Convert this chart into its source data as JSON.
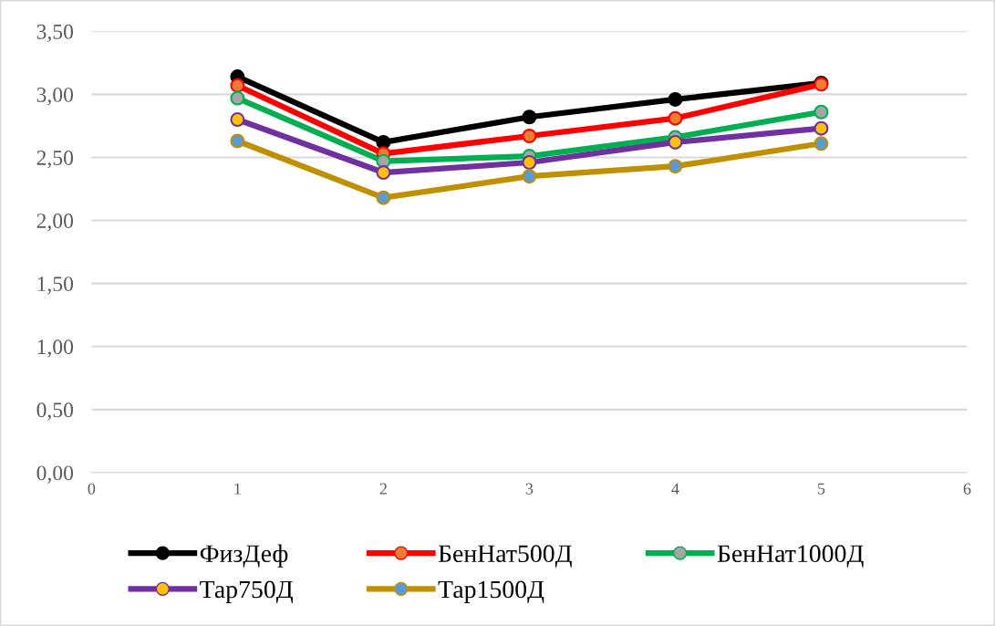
{
  "chart_data": {
    "type": "line",
    "x": [
      1,
      2,
      3,
      4,
      5
    ],
    "series": [
      {
        "name": "ФизДеф",
        "color": "#000000",
        "colors": [
          "#000000",
          "#000000",
          "#000000",
          "#000000",
          "#000000"
        ],
        "values": [
          3.14,
          2.62,
          2.82,
          2.96,
          3.09
        ]
      },
      {
        "name": "БенНат500Д",
        "color": "#ff0000",
        "colors": [
          "#ed7d31",
          "#ed7d31",
          "#ed7d31",
          "#ed7d31",
          "#ed7d31"
        ],
        "values": [
          3.07,
          2.53,
          2.67,
          2.81,
          3.08
        ]
      },
      {
        "name": "БенНат1000Д",
        "color": "#00b050",
        "colors": [
          "#a5a5a5",
          "#a5a5a5",
          "#a5a5a5",
          "#a5a5a5",
          "#a5a5a5"
        ],
        "values": [
          2.97,
          2.47,
          2.51,
          2.66,
          2.86
        ]
      },
      {
        "name": "Тар750Д",
        "color": "#7030a0",
        "colors": [
          "#ffc000",
          "#ffc000",
          "#ffc000",
          "#ffc000",
          "#ffc000"
        ],
        "values": [
          2.8,
          2.38,
          2.46,
          2.62,
          2.73
        ]
      },
      {
        "name": "Тар1500Д",
        "color": "#bf9000",
        "colors": [
          "#5b9bd5",
          "#5b9bd5",
          "#5b9bd5",
          "#5b9bd5",
          "#5b9bd5"
        ],
        "values": [
          2.63,
          2.18,
          2.35,
          2.43,
          2.61
        ]
      }
    ],
    "xlim": [
      0,
      6
    ],
    "xticks": [
      0,
      1,
      2,
      3,
      4,
      5,
      6
    ],
    "ylim": [
      0,
      3.5
    ],
    "yticks": [
      {
        "value": 0,
        "label": "0,00"
      },
      {
        "value": 0.5,
        "label": "0,50"
      },
      {
        "value": 1,
        "label": "1,00"
      },
      {
        "value": 1.5,
        "label": "1,50"
      },
      {
        "value": 2,
        "label": "2,00"
      },
      {
        "value": 2.5,
        "label": "2,50"
      },
      {
        "value": 3,
        "label": "3,00"
      },
      {
        "value": 3.5,
        "label": "3,50"
      }
    ],
    "grid": "y",
    "legend": "bottom",
    "marker": "circle",
    "line_style": "solid"
  }
}
